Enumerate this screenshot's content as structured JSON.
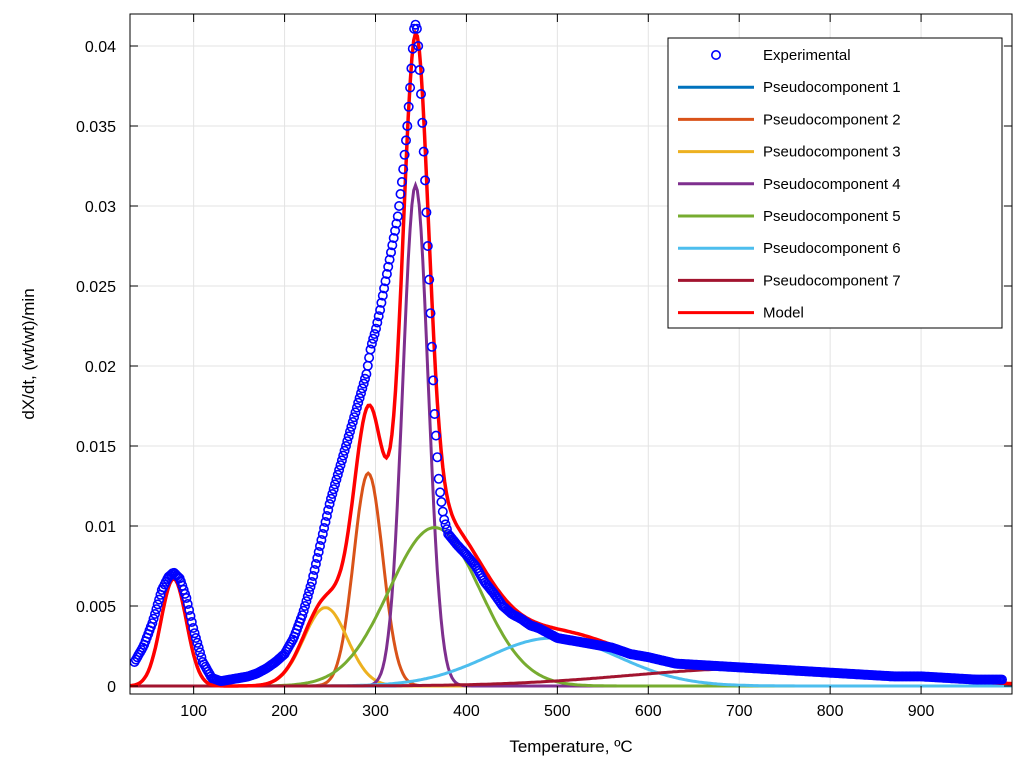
{
  "chart_data": {
    "type": "line",
    "title": "",
    "xlabel": "Temperature, ºC",
    "ylabel": "dX/dt, (wt/wt)/min",
    "xlim": [
      30,
      1000
    ],
    "ylim": [
      -0.0005,
      0.042
    ],
    "xticks": [
      100,
      200,
      300,
      400,
      500,
      600,
      700,
      800,
      900
    ],
    "xtick_labels": [
      "100",
      "200",
      "300",
      "400",
      "500",
      "600",
      "700",
      "800",
      "900"
    ],
    "yticks": [
      0,
      0.005,
      0.01,
      0.015,
      0.02,
      0.025,
      0.03,
      0.035,
      0.04
    ],
    "ytick_labels": [
      "0",
      "0.005",
      "0.01",
      "0.015",
      "0.02",
      "0.025",
      "0.03",
      "0.035",
      "0.04"
    ],
    "grid": true,
    "legend_position": "top-right",
    "experimental": {
      "name": "Experimental",
      "color": "#0000ff",
      "x": [
        35,
        45,
        55,
        65,
        72,
        78,
        85,
        92,
        100,
        110,
        120,
        130,
        140,
        150,
        160,
        170,
        180,
        190,
        200,
        210,
        220,
        230,
        240,
        250,
        260,
        270,
        280,
        290,
        295,
        300,
        305,
        310,
        315,
        320,
        325,
        330,
        335,
        340,
        343,
        346,
        350,
        355,
        360,
        365,
        370,
        375,
        380,
        390,
        400,
        410,
        420,
        430,
        440,
        450,
        460,
        470,
        480,
        490,
        500,
        520,
        540,
        560,
        580,
        600,
        630,
        660,
        690,
        720,
        750,
        780,
        810,
        840,
        870,
        900,
        930,
        960,
        990
      ],
      "y": [
        0.0015,
        0.0025,
        0.004,
        0.006,
        0.0068,
        0.0071,
        0.0067,
        0.0055,
        0.0035,
        0.0015,
        0.0005,
        0.0003,
        0.0004,
        0.0005,
        0.0006,
        0.0008,
        0.0011,
        0.0015,
        0.002,
        0.003,
        0.0045,
        0.0065,
        0.009,
        0.0115,
        0.0135,
        0.0155,
        0.0175,
        0.0195,
        0.0212,
        0.0222,
        0.0235,
        0.025,
        0.0265,
        0.028,
        0.0295,
        0.032,
        0.035,
        0.039,
        0.0415,
        0.041,
        0.037,
        0.031,
        0.024,
        0.017,
        0.0125,
        0.0105,
        0.0095,
        0.0088,
        0.0082,
        0.0075,
        0.0065,
        0.0058,
        0.005,
        0.0045,
        0.0042,
        0.0038,
        0.0036,
        0.0033,
        0.003,
        0.0028,
        0.0026,
        0.0024,
        0.002,
        0.0018,
        0.0014,
        0.0013,
        0.0012,
        0.0011,
        0.001,
        0.0009,
        0.0008,
        0.0007,
        0.0006,
        0.0006,
        0.0005,
        0.0004,
        0.0004
      ]
    },
    "components": [
      {
        "name": "Pseudocomponent 1",
        "color": "#0072bd",
        "peak_x": 78,
        "peak_y": 0.0067,
        "width": 14
      },
      {
        "name": "Pseudocomponent 2",
        "color": "#d95319",
        "peak_x": 292,
        "peak_y": 0.0133,
        "width": 16
      },
      {
        "name": "Pseudocomponent 3",
        "color": "#edb120",
        "peak_x": 245,
        "peak_y": 0.0049,
        "width": 24
      },
      {
        "name": "Pseudocomponent 4",
        "color": "#7e2f8e",
        "peak_x": 344,
        "peak_y": 0.0313,
        "width": 14
      },
      {
        "name": "Pseudocomponent 5",
        "color": "#77ac30",
        "peak_x": 365,
        "peak_y": 0.0099,
        "width": 50
      },
      {
        "name": "Pseudocomponent 6",
        "color": "#4dbeee",
        "peak_x": 495,
        "peak_y": 0.003,
        "width": 72
      },
      {
        "name": "Pseudocomponent 7",
        "color": "#a2142f",
        "peak_x": 720,
        "peak_y": 0.0011,
        "width": 140
      }
    ],
    "model": {
      "name": "Model",
      "color": "#ff0000"
    }
  }
}
